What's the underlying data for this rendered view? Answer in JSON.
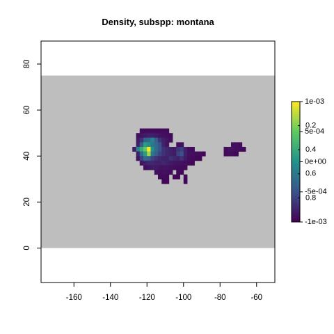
{
  "chart_data": {
    "type": "heatmap",
    "title": "Density, subspp: montana",
    "xlabel": "",
    "ylabel": "",
    "xlim": [
      -178,
      -50
    ],
    "ylim": [
      -15,
      90
    ],
    "x_ticks": [
      -160,
      -140,
      -120,
      -100,
      -80,
      -60
    ],
    "x_tick_labels": [
      "-160",
      "-140",
      "-120",
      "-100",
      "-80",
      "-60"
    ],
    "y_ticks": [
      0,
      20,
      40,
      60,
      80
    ],
    "y_tick_labels": [
      "0",
      "20",
      "40",
      "60",
      "80"
    ],
    "background_band": {
      "ymin": 0,
      "ymax": 75,
      "color": "#bebebe"
    },
    "cell_size": 2,
    "colormap": [
      "#440154",
      "#3b528b",
      "#21918c",
      "#5ec962",
      "#fde725"
    ],
    "value_range": [
      0,
      1
    ],
    "legend": {
      "placement": "right",
      "labels_right": [
        "1e-03",
        "5e-04",
        "0e+00",
        "-5e-04",
        "-1e-03"
      ],
      "labels_inner": [
        "0.8",
        "0.6",
        "0.4",
        "0.2"
      ]
    },
    "cells": [
      [
        -124,
        50,
        0.03
      ],
      [
        -122,
        50,
        0.03
      ],
      [
        -120,
        50,
        0.03
      ],
      [
        -118,
        50,
        0.03
      ],
      [
        -116,
        50,
        0.03
      ],
      [
        -114,
        50,
        0.03
      ],
      [
        -112,
        50,
        0.03
      ],
      [
        -110,
        50,
        0.03
      ],
      [
        -126,
        48,
        0.05
      ],
      [
        -124,
        48,
        0.06
      ],
      [
        -122,
        48,
        0.08
      ],
      [
        -120,
        48,
        0.1
      ],
      [
        -118,
        48,
        0.1
      ],
      [
        -116,
        48,
        0.08
      ],
      [
        -114,
        48,
        0.06
      ],
      [
        -112,
        48,
        0.05
      ],
      [
        -110,
        48,
        0.04
      ],
      [
        -108,
        48,
        0.03
      ],
      [
        -126,
        46,
        0.08
      ],
      [
        -124,
        46,
        0.15
      ],
      [
        -122,
        46,
        0.3
      ],
      [
        -120,
        46,
        0.35
      ],
      [
        -118,
        46,
        0.45
      ],
      [
        -116,
        46,
        0.3
      ],
      [
        -114,
        46,
        0.15
      ],
      [
        -112,
        46,
        0.1
      ],
      [
        -110,
        46,
        0.06
      ],
      [
        -108,
        46,
        0.04
      ],
      [
        -126,
        44,
        0.1
      ],
      [
        -124,
        44,
        0.3
      ],
      [
        -122,
        44,
        0.55
      ],
      [
        -120,
        44,
        0.5
      ],
      [
        -118,
        44,
        0.4
      ],
      [
        -116,
        44,
        0.35
      ],
      [
        -114,
        44,
        0.25
      ],
      [
        -112,
        44,
        0.1
      ],
      [
        -110,
        44,
        0.06
      ],
      [
        -104,
        44,
        0.04
      ],
      [
        -102,
        44,
        0.05
      ],
      [
        -128,
        42,
        0.08
      ],
      [
        -126,
        42,
        0.45
      ],
      [
        -124,
        42,
        0.6
      ],
      [
        -122,
        42,
        0.75
      ],
      [
        -120,
        42,
        1.0
      ],
      [
        -118,
        42,
        0.5
      ],
      [
        -116,
        42,
        0.35
      ],
      [
        -114,
        42,
        0.25
      ],
      [
        -112,
        42,
        0.15
      ],
      [
        -110,
        42,
        0.12
      ],
      [
        -108,
        42,
        0.1
      ],
      [
        -106,
        42,
        0.08
      ],
      [
        -104,
        42,
        0.15
      ],
      [
        -102,
        42,
        0.2
      ],
      [
        -100,
        42,
        0.1
      ],
      [
        -98,
        42,
        0.04
      ],
      [
        -96,
        42,
        0.03
      ],
      [
        -126,
        40,
        0.1
      ],
      [
        -124,
        40,
        0.35
      ],
      [
        -122,
        40,
        0.55
      ],
      [
        -120,
        40,
        0.85
      ],
      [
        -118,
        40,
        0.4
      ],
      [
        -116,
        40,
        0.3
      ],
      [
        -114,
        40,
        0.2
      ],
      [
        -112,
        40,
        0.15
      ],
      [
        -110,
        40,
        0.12
      ],
      [
        -108,
        40,
        0.1
      ],
      [
        -106,
        40,
        0.08
      ],
      [
        -104,
        40,
        0.2
      ],
      [
        -102,
        40,
        0.25
      ],
      [
        -100,
        40,
        0.1
      ],
      [
        -98,
        40,
        0.05
      ],
      [
        -96,
        40,
        0.04
      ],
      [
        -94,
        40,
        0.03
      ],
      [
        -92,
        40,
        0.03
      ],
      [
        -90,
        40,
        0.02
      ],
      [
        -126,
        38,
        0.06
      ],
      [
        -124,
        38,
        0.2
      ],
      [
        -122,
        38,
        0.35
      ],
      [
        -120,
        38,
        0.3
      ],
      [
        -118,
        38,
        0.2
      ],
      [
        -116,
        38,
        0.15
      ],
      [
        -114,
        38,
        0.12
      ],
      [
        -112,
        38,
        0.1
      ],
      [
        -110,
        38,
        0.1
      ],
      [
        -108,
        38,
        0.15
      ],
      [
        -106,
        38,
        0.12
      ],
      [
        -104,
        38,
        0.1
      ],
      [
        -102,
        38,
        0.15
      ],
      [
        -100,
        38,
        0.08
      ],
      [
        -98,
        38,
        0.04
      ],
      [
        -96,
        38,
        0.03
      ],
      [
        -94,
        38,
        0.02
      ],
      [
        -92,
        38,
        0.02
      ],
      [
        -124,
        36,
        0.06
      ],
      [
        -122,
        36,
        0.1
      ],
      [
        -120,
        36,
        0.12
      ],
      [
        -118,
        36,
        0.12
      ],
      [
        -116,
        36,
        0.1
      ],
      [
        -114,
        36,
        0.1
      ],
      [
        -112,
        36,
        0.12
      ],
      [
        -110,
        36,
        0.1
      ],
      [
        -108,
        36,
        0.08
      ],
      [
        -106,
        36,
        0.06
      ],
      [
        -104,
        36,
        0.06
      ],
      [
        -102,
        36,
        0.05
      ],
      [
        -100,
        36,
        0.04
      ],
      [
        -98,
        36,
        0.03
      ],
      [
        -96,
        36,
        0.02
      ],
      [
        -122,
        34,
        0.04
      ],
      [
        -120,
        34,
        0.06
      ],
      [
        -118,
        34,
        0.08
      ],
      [
        -116,
        34,
        0.08
      ],
      [
        -114,
        34,
        0.06
      ],
      [
        -112,
        34,
        0.06
      ],
      [
        -110,
        34,
        0.06
      ],
      [
        -108,
        34,
        0.05
      ],
      [
        -106,
        34,
        0.04
      ],
      [
        -104,
        34,
        0.03
      ],
      [
        -102,
        34,
        0.03
      ],
      [
        -100,
        34,
        0.03
      ],
      [
        -116,
        32,
        0.05
      ],
      [
        -114,
        32,
        0.04
      ],
      [
        -112,
        32,
        0.05
      ],
      [
        -110,
        32,
        0.04
      ],
      [
        -108,
        32,
        0.03
      ],
      [
        -104,
        32,
        0.03
      ],
      [
        -102,
        32,
        0.02
      ],
      [
        -114,
        30,
        0.03
      ],
      [
        -112,
        30,
        0.03
      ],
      [
        -110,
        30,
        0.03
      ],
      [
        -106,
        30,
        0.02
      ],
      [
        -104,
        30,
        0.02
      ],
      [
        -100,
        30,
        0.02
      ],
      [
        -112,
        28,
        0.02
      ],
      [
        -110,
        28,
        0.02
      ],
      [
        -100,
        28,
        0.02
      ],
      [
        -74,
        44,
        0.04
      ],
      [
        -72,
        44,
        0.04
      ],
      [
        -70,
        44,
        0.03
      ],
      [
        -78,
        42,
        0.03
      ],
      [
        -76,
        42,
        0.05
      ],
      [
        -74,
        42,
        0.05
      ],
      [
        -72,
        42,
        0.04
      ],
      [
        -70,
        42,
        0.03
      ],
      [
        -68,
        42,
        0.02
      ],
      [
        -78,
        40,
        0.03
      ],
      [
        -76,
        40,
        0.04
      ],
      [
        -74,
        40,
        0.03
      ],
      [
        -72,
        40,
        0.02
      ]
    ]
  }
}
